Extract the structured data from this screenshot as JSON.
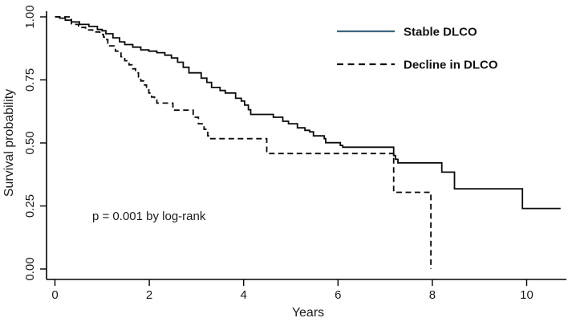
{
  "figure": {
    "annotation_p_value": "p = 0.001 by log-rank"
  },
  "axes": {
    "x": {
      "label": "Years",
      "ticks": [
        {
          "value": 0,
          "label": "0"
        },
        {
          "value": 2,
          "label": "2"
        },
        {
          "value": 4,
          "label": "4"
        },
        {
          "value": 6,
          "label": "6"
        },
        {
          "value": 8,
          "label": "8"
        },
        {
          "value": 10,
          "label": "10"
        }
      ],
      "range": [
        0,
        10.9
      ]
    },
    "y": {
      "label": "Survival probability",
      "ticks": [
        {
          "value": 1.0,
          "label": "1.00"
        },
        {
          "value": 0.75,
          "label": "0.75"
        },
        {
          "value": 0.5,
          "label": "0.50"
        },
        {
          "value": 0.25,
          "label": "0.25"
        },
        {
          "value": 0.0,
          "label": "0.00"
        }
      ],
      "range": [
        0,
        1.03
      ]
    }
  },
  "legend": {
    "items": [
      {
        "label": "Stable DLCO",
        "line_style": "solid",
        "color": "#3e637f"
      },
      {
        "label": "Decline in DLCO",
        "line_style": "dashed",
        "color": "#111111"
      }
    ]
  },
  "chart_data": {
    "type": "line",
    "subtype": "kaplan-meier-step",
    "title": "",
    "xlabel": "Years",
    "ylabel": "Survival probability",
    "xlim": [
      0,
      10.9
    ],
    "ylim": [
      0,
      1.03
    ],
    "x_ticks": [
      0,
      2,
      4,
      6,
      8,
      10
    ],
    "y_ticks": [
      0.0,
      0.25,
      0.5,
      0.75,
      1.0
    ],
    "grid": false,
    "legend_position": "top-right-inside",
    "annotations": [
      {
        "text": "p = 0.001 by log-rank",
        "x_year": 1.0,
        "y_survival": 0.2
      }
    ],
    "series": [
      {
        "name": "Stable DLCO",
        "style": "solid",
        "color": "#0a0a0a",
        "end_time": 10.72,
        "points": [
          [
            0.0,
            1.0
          ],
          [
            0.1,
            0.995
          ],
          [
            0.22,
            0.987
          ],
          [
            0.35,
            0.98
          ],
          [
            0.52,
            0.97
          ],
          [
            0.72,
            0.962
          ],
          [
            0.9,
            0.95
          ],
          [
            1.0,
            0.945
          ],
          [
            1.08,
            0.933
          ],
          [
            1.23,
            0.917
          ],
          [
            1.37,
            0.901
          ],
          [
            1.48,
            0.89
          ],
          [
            1.65,
            0.88
          ],
          [
            1.82,
            0.869
          ],
          [
            1.99,
            0.864
          ],
          [
            2.16,
            0.858
          ],
          [
            2.33,
            0.848
          ],
          [
            2.47,
            0.837
          ],
          [
            2.6,
            0.82
          ],
          [
            2.72,
            0.8
          ],
          [
            2.84,
            0.778
          ],
          [
            3.1,
            0.757
          ],
          [
            3.22,
            0.74
          ],
          [
            3.32,
            0.72
          ],
          [
            3.5,
            0.708
          ],
          [
            3.61,
            0.698
          ],
          [
            3.83,
            0.677
          ],
          [
            3.95,
            0.666
          ],
          [
            4.02,
            0.65
          ],
          [
            4.1,
            0.632
          ],
          [
            4.15,
            0.613
          ],
          [
            4.63,
            0.602
          ],
          [
            4.83,
            0.586
          ],
          [
            4.95,
            0.576
          ],
          [
            5.14,
            0.56
          ],
          [
            5.3,
            0.55
          ],
          [
            5.4,
            0.544
          ],
          [
            5.48,
            0.528
          ],
          [
            5.71,
            0.517
          ],
          [
            5.74,
            0.501
          ],
          [
            6.05,
            0.49
          ],
          [
            6.1,
            0.483
          ],
          [
            7.18,
            0.45
          ],
          [
            7.22,
            0.435
          ],
          [
            7.27,
            0.421
          ],
          [
            8.2,
            0.384
          ],
          [
            8.47,
            0.318
          ],
          [
            9.91,
            0.24
          ]
        ]
      },
      {
        "name": "Decline in DLCO",
        "style": "dashed",
        "color": "#0a0a0a",
        "end_time": 7.97,
        "points": [
          [
            0.0,
            1.0
          ],
          [
            0.35,
            0.97
          ],
          [
            0.5,
            0.958
          ],
          [
            0.65,
            0.948
          ],
          [
            0.8,
            0.94
          ],
          [
            0.95,
            0.93
          ],
          [
            1.03,
            0.92
          ],
          [
            1.08,
            0.91
          ],
          [
            1.12,
            0.896
          ],
          [
            1.16,
            0.885
          ],
          [
            1.28,
            0.864
          ],
          [
            1.4,
            0.842
          ],
          [
            1.48,
            0.826
          ],
          [
            1.57,
            0.81
          ],
          [
            1.65,
            0.794
          ],
          [
            1.71,
            0.778
          ],
          [
            1.77,
            0.762
          ],
          [
            1.82,
            0.746
          ],
          [
            1.88,
            0.73
          ],
          [
            1.94,
            0.714
          ],
          [
            1.99,
            0.698
          ],
          [
            2.05,
            0.682
          ],
          [
            2.11,
            0.67
          ],
          [
            2.16,
            0.658
          ],
          [
            2.5,
            0.63
          ],
          [
            2.93,
            0.602
          ],
          [
            3.04,
            0.576
          ],
          [
            3.16,
            0.554
          ],
          [
            3.24,
            0.528
          ],
          [
            3.27,
            0.517
          ],
          [
            4.49,
            0.458
          ],
          [
            7.18,
            0.304
          ],
          [
            7.97,
            0.0
          ]
        ]
      }
    ]
  }
}
